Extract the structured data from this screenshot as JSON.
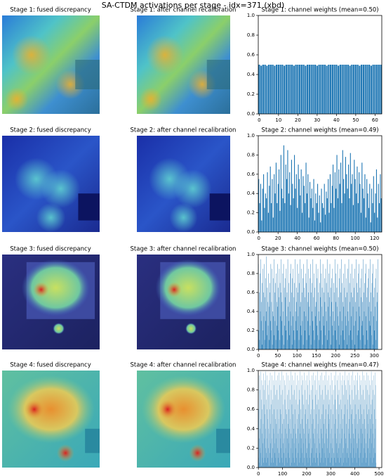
{
  "title": "SA-CTDM activations per stage - idx=371 (xbd)",
  "rows": [
    {
      "fused": "Stage 1: fused discrepancy",
      "recal": "Stage 1: after channel recalibration"
    },
    {
      "fused": "Stage 2: fused discrepancy",
      "recal": "Stage 2: after channel recalibration"
    },
    {
      "fused": "Stage 3: fused discrepancy",
      "recal": "Stage 3: after channel recalibration"
    },
    {
      "fused": "Stage 4: fused discrepancy",
      "recal": "Stage 4: after channel recalibration"
    }
  ],
  "chart_data": [
    {
      "type": "bar",
      "title": "Stage 1: channel weights (mean=0.50)",
      "color": "#1f77b4",
      "xlim": [
        -0.5,
        63.5
      ],
      "xticks": [
        0,
        10,
        20,
        30,
        40,
        50,
        60
      ],
      "ylim": [
        0,
        1
      ],
      "yticks": [
        {
          "value": 0,
          "label": "0.0"
        },
        0.2,
        0.4,
        0.6,
        0.8,
        {
          "value": 1,
          "label": "1.0"
        }
      ],
      "values": [
        0.5,
        0.49,
        0.5,
        0.5,
        0.49,
        0.5,
        0.5,
        0.5,
        0.49,
        0.5,
        0.5,
        0.5,
        0.5,
        0.49,
        0.5,
        0.5,
        0.5,
        0.5,
        0.49,
        0.5,
        0.5,
        0.5,
        0.5,
        0.5,
        0.49,
        0.5,
        0.5,
        0.5,
        0.5,
        0.5,
        0.49,
        0.5,
        0.5,
        0.5,
        0.5,
        0.49,
        0.5,
        0.5,
        0.5,
        0.5,
        0.5,
        0.49,
        0.5,
        0.5,
        0.5,
        0.5,
        0.5,
        0.49,
        0.5,
        0.5,
        0.5,
        0.5,
        0.49,
        0.5,
        0.5,
        0.5,
        0.5,
        0.5,
        0.49,
        0.5,
        0.5,
        0.5,
        0.5,
        0.5
      ]
    },
    {
      "type": "bar",
      "title": "Stage 2: channel weights (mean=0.49)",
      "color": "#1f77b4",
      "xlim": [
        -0.5,
        127.5
      ],
      "xticks": [
        0,
        20,
        40,
        60,
        80,
        100,
        120
      ],
      "ylim": [
        0,
        1
      ],
      "yticks": [
        {
          "value": 0,
          "label": "0.0"
        },
        0.2,
        0.4,
        0.6,
        0.8,
        {
          "value": 1,
          "label": "1.0"
        }
      ],
      "values": [
        0.55,
        0.3,
        0.5,
        0.12,
        0.45,
        0.6,
        0.25,
        0.4,
        0.35,
        0.62,
        0.2,
        0.48,
        0.68,
        0.3,
        0.55,
        0.15,
        0.6,
        0.4,
        0.72,
        0.3,
        0.5,
        0.65,
        0.22,
        0.8,
        0.45,
        0.35,
        0.9,
        0.3,
        0.7,
        0.55,
        0.85,
        0.4,
        0.62,
        0.28,
        0.75,
        0.5,
        0.35,
        0.8,
        0.45,
        0.6,
        0.25,
        0.7,
        0.55,
        0.38,
        0.65,
        0.2,
        0.58,
        0.48,
        0.3,
        0.72,
        0.4,
        0.6,
        0.15,
        0.52,
        0.35,
        0.45,
        0.25,
        0.55,
        0.12,
        0.4,
        0.3,
        0.5,
        0.2,
        0.38,
        0.1,
        0.45,
        0.3,
        0.25,
        0.5,
        0.18,
        0.42,
        0.35,
        0.55,
        0.2,
        0.6,
        0.3,
        0.48,
        0.7,
        0.25,
        0.62,
        0.45,
        0.8,
        0.35,
        0.65,
        0.5,
        0.72,
        0.3,
        0.85,
        0.55,
        0.4,
        0.78,
        0.6,
        0.45,
        0.7,
        0.35,
        0.82,
        0.5,
        0.6,
        0.28,
        0.75,
        0.55,
        0.4,
        0.68,
        0.3,
        0.62,
        0.5,
        0.2,
        0.72,
        0.45,
        0.35,
        0.6,
        0.15,
        0.55,
        0.4,
        0.25,
        0.5,
        0.1,
        0.45,
        0.3,
        0.58,
        0.2,
        0.4,
        0.65,
        0.15,
        0.5,
        0.3,
        0.6,
        0.35
      ]
    },
    {
      "type": "bar",
      "title": "Stage 3: channel weights (mean=0.50)",
      "color": "#1f77b4",
      "xlim": [
        -0.5,
        319.5
      ],
      "xticks": [
        0,
        50,
        100,
        150,
        200,
        250,
        300
      ],
      "ylim": [
        0,
        1
      ],
      "yticks": [
        {
          "value": 0,
          "label": "0.0"
        },
        0.2,
        0.4,
        0.6,
        0.8,
        {
          "value": 1,
          "label": "1.0"
        }
      ],
      "values": [
        0.9,
        0.2,
        0.6,
        0.1,
        0.8,
        0.4,
        0.95,
        0.3,
        0.5,
        0.05,
        0.7,
        0.85,
        0.2,
        0.6,
        0.35,
        0.9,
        0.1,
        0.55,
        0.75,
        0.3,
        0.4,
        0.98,
        0.15,
        0.65,
        0.5,
        0.25,
        0.8,
        0.45,
        0.1,
        0.7,
        0.6,
        0.3,
        0.9,
        0.2,
        0.5,
        0.85,
        0.05,
        0.4,
        0.75,
        0.35,
        0.95,
        0.15,
        0.6,
        0.3,
        0.7,
        0.1,
        0.8,
        0.5,
        0.25,
        0.9,
        0.45,
        0.65,
        0.2,
        0.55,
        0.85,
        0.1,
        0.7,
        0.35,
        0.6,
        0.95,
        0.3,
        0.5,
        0.15,
        0.8,
        0.4,
        0.9,
        0.05,
        0.65,
        0.25,
        0.75,
        0.55,
        0.2,
        0.85,
        0.35,
        0.6,
        0.1,
        0.95,
        0.45,
        0.3,
        0.7,
        0.5,
        0.15,
        0.8,
        0.4,
        0.9,
        0.25,
        0.6,
        0.05,
        0.75,
        0.35,
        0.85,
        0.2,
        0.55,
        0.7,
        0.1,
        0.95,
        0.4,
        0.3,
        0.65,
        0.5,
        0.2,
        0.9,
        0.6,
        0.35,
        0.8,
        0.1,
        0.7,
        0.45,
        0.95,
        0.25,
        0.5,
        0.85,
        0.15,
        0.6,
        0.3,
        0.75,
        0.05,
        0.9,
        0.4,
        0.65,
        0.55,
        0.2,
        0.8,
        0.35,
        0.7,
        0.1,
        0.95,
        0.5,
        0.3,
        0.6,
        0.85,
        0.15,
        0.45,
        0.75,
        0.25,
        0.9,
        0.05,
        0.6,
        0.4,
        0.7,
        0.3,
        0.95,
        0.2,
        0.55,
        0.8,
        0.1,
        0.65,
        0.45,
        0.35,
        0.9,
        0.5,
        0.25,
        0.75,
        0.15,
        0.85,
        0.6,
        0.4,
        0.1,
        0.7,
        0.3,
        0.95,
        0.55,
        0.2,
        0.8,
        0.45,
        0.65,
        0.05,
        0.9,
        0.35,
        0.6,
        0.25,
        0.75,
        0.5,
        0.15,
        0.85,
        0.4,
        0.7,
        0.3,
        0.95,
        0.1,
        0.6,
        0.45,
        0.8,
        0.2,
        0.55,
        0.9,
        0.35,
        0.65,
        0.05,
        0.75,
        0.5,
        0.25,
        0.85,
        0.4,
        0.15,
        0.7,
        0.6,
        0.3,
        0.95,
        0.2,
        0.5,
        0.8,
        0.1,
        0.65,
        0.45,
        0.9,
        0.35,
        0.55,
        0.25,
        0.75,
        0.05,
        0.85,
        0.4,
        0.6,
        0.15,
        0.95,
        0.3,
        0.7,
        0.5,
        0.2,
        0.8,
        0.45,
        0.1,
        0.65,
        0.9,
        0.35,
        0.55,
        0.25,
        0.75,
        0.6,
        0.05,
        0.85,
        0.4,
        0.3,
        0.95,
        0.15,
        0.7,
        0.5,
        0.2,
        0.8,
        0.6,
        0.35,
        0.9,
        0.1,
        0.55,
        0.45,
        0.75,
        0.25,
        0.65,
        0.85,
        0.05,
        0.5,
        0.3,
        0.95,
        0.4,
        0.7,
        0.15,
        0.6,
        0.8,
        0.2,
        0.9,
        0.45,
        0.35,
        0.65,
        0.1,
        0.75,
        0.55,
        0.25,
        0.85,
        0.5,
        0.3,
        0.95,
        0.15,
        0.6,
        0.4,
        0.7,
        0.05,
        0.8,
        0.35,
        0.9,
        0.2,
        0.55,
        0.65,
        0.1,
        0.75,
        0.45,
        0.85,
        0.3,
        0.5,
        0.95,
        0.25,
        0.6,
        0.4,
        0.15,
        0.7,
        0.8,
        0.05,
        0.9,
        0.35,
        0.55,
        0.2,
        0.65,
        0.45,
        0.75,
        0.1,
        0.85,
        0.3,
        0.5,
        0.6,
        0.95
      ]
    },
    {
      "type": "bar",
      "title": "Stage 4: channel weights (mean=0.47)",
      "color": "#1f77b4",
      "xlim": [
        -0.5,
        511.5
      ],
      "xticks": [
        0,
        100,
        200,
        300,
        400,
        500
      ],
      "ylim": [
        0,
        1
      ],
      "yticks": [
        {
          "value": 0,
          "label": "0.0"
        },
        0.2,
        0.4,
        0.6,
        0.8,
        {
          "value": 1,
          "label": "1.0"
        }
      ],
      "values": [
        0.98,
        0.1,
        0.6,
        0.3,
        0.95,
        0.05,
        0.4,
        0.8,
        0.2,
        0.99,
        0.15,
        0.5,
        0.7,
        0.02,
        0.9,
        0.35,
        0.6,
        0.1,
        0.85,
        0.25,
        0.45,
        0.97,
        0.05,
        0.65,
        0.3,
        0.8,
        0.1,
        0.55,
        0.9,
        0.2,
        0.4,
        0.99,
        0.15,
        0.7,
        0.05,
        0.6,
        0.3,
        0.95,
        0.1,
        0.5,
        0.85,
        0.2,
        0.4,
        0.75,
        0.02,
        0.9,
        0.35,
        0.6,
        0.15,
        0.98,
        0.25,
        0.45,
        0.8,
        0.05,
        0.65,
        0.3,
        0.95,
        0.1,
        0.55,
        0.7,
        0.2,
        0.9,
        0.4,
        0.05,
        0.85,
        0.35,
        0.6,
        0.15,
        0.99,
        0.25,
        0.5,
        0.75,
        0.1,
        0.9,
        0.3,
        0.45,
        0.02,
        0.8,
        0.6,
        0.2,
        0.95,
        0.35,
        0.1,
        0.7,
        0.5,
        0.98,
        0.15,
        0.4,
        0.85,
        0.05,
        0.6,
        0.3,
        0.9,
        0.2,
        0.55,
        0.75,
        0.1,
        0.99,
        0.35,
        0.45,
        0.05,
        0.8,
        0.25,
        0.65,
        0.95,
        0.15,
        0.5,
        0.3,
        0.9,
        0.02,
        0.7,
        0.4,
        0.85,
        0.2,
        0.6,
        0.1,
        0.98,
        0.35,
        0.55,
        0.05,
        0.75,
        0.3,
        0.95,
        0.15,
        0.45,
        0.8,
        0.25,
        0.6,
        0.1,
        0.9,
        0.4,
        0.02,
        0.7,
        0.5,
        0.99,
        0.2,
        0.35,
        0.85,
        0.05,
        0.65,
        0.3,
        0.95,
        0.15,
        0.55,
        0.75,
        0.1,
        0.9,
        0.4,
        0.25,
        0.8,
        0.05,
        0.6,
        0.45,
        0.98,
        0.2,
        0.35,
        0.7,
        0.1,
        0.85,
        0.3,
        0.5,
        0.95,
        0.02,
        0.65,
        0.4,
        0.15,
        0.9,
        0.25,
        0.55,
        0.8,
        0.05,
        0.7,
        0.35,
        0.99,
        0.1,
        0.45,
        0.6,
        0.2,
        0.85,
        0.3,
        0.95,
        0.15,
        0.5,
        0.75,
        0.05,
        0.9,
        0.4,
        0.25,
        0.65,
        0.1,
        0.98,
        0.35,
        0.55,
        0.8,
        0.02,
        0.6,
        0.3,
        0.9,
        0.15,
        0.45,
        0.7,
        0.2,
        0.95,
        0.1,
        0.5,
        0.85,
        0.05,
        0.65,
        0.35,
        0.99,
        0.25,
        0.4,
        0.75,
        0.1,
        0.9,
        0.3,
        0.55,
        0.02,
        0.8,
        0.6,
        0.15,
        0.95,
        0.45,
        0.2,
        0.7,
        0.05,
        0.85,
        0.35,
        0.5,
        0.98,
        0.1,
        0.6,
        0.3,
        0.9,
        0.25,
        0.4,
        0.75,
        0.05,
        0.95,
        0.15,
        0.55,
        0.8,
        0.2,
        0.65,
        0.35,
        0.99,
        0.1,
        0.45,
        0.7,
        0.02,
        0.9,
        0.3,
        0.6,
        0.15,
        0.85,
        0.25,
        0.5,
        0.95,
        0.05,
        0.75,
        0.4,
        0.1,
        0.98,
        0.35,
        0.55,
        0.2,
        0.8,
        0.3,
        0.65,
        0.9,
        0.05,
        0.45,
        0.7,
        0.15,
        0.95,
        0.25,
        0.5,
        0.85,
        0.1,
        0.6,
        0.35,
        0.99,
        0.02,
        0.75,
        0.4,
        0.2,
        0.9,
        0.3,
        0.55,
        0.8,
        0.1,
        0.65,
        0.45,
        0.95,
        0.15,
        0.5,
        0.7,
        0.05,
        0.85,
        0.35,
        0.6,
        0.25,
        0.98,
        0.1,
        0.4,
        0.75,
        0.2,
        0.9,
        0.3,
        0.55,
        0.02,
        0.8,
        0.65,
        0.15,
        0.95,
        0.45,
        0.1,
        0.7,
        0.35,
        0.85,
        0.05,
        0.5,
        0.99,
        0.25,
        0.6,
        0.3,
        0.9,
        0.15,
        0.4,
        0.75,
        0.1,
        0.95,
        0.2,
        0.55,
        0.8,
        0.05,
        0.65,
        0.35,
        0.98,
        0.25,
        0.45,
        0.7,
        0.1,
        0.9,
        0.3,
        0.6,
        0.02,
        0.85,
        0.4,
        0.15,
        0.95,
        0.5,
        0.2,
        0.75,
        0.05,
        0.9,
        0.35,
        0.55,
        0.99,
        0.1,
        0.65,
        0.3,
        0.85,
        0.25,
        0.45,
        0.8,
        0.05,
        0.95,
        0.15,
        0.6,
        0.7,
        0.2,
        0.9,
        0.4,
        0.1,
        0.98,
        0.35,
        0.5,
        0.75,
        0.02,
        0.85,
        0.3,
        0.65,
        0.15,
        0.95,
        0.25,
        0.55,
        0.8,
        0.1,
        0.6,
        0.45,
        0.99,
        0.05,
        0.7,
        0.35,
        0.2,
        0.9,
        0.3,
        0.5,
        0.85,
        0.1,
        0.65,
        0.4,
        0.95,
        0.15,
        0.55,
        0.75,
        0.05,
        0.9,
        0.25,
        0.45,
        0.98,
        0.2,
        0.6,
        0.35,
        0.8,
        0.1,
        0.7,
        0.3,
        0.95,
        0.02,
        0.5,
        0.85,
        0.15,
        0.65,
        0.4,
        0.9,
        0.25,
        0.55,
        0.75,
        0.05,
        0.99,
        0.35,
        0.45,
        0.1,
        0.8,
        0.6,
        0.2,
        0.95,
        0.3,
        0.5,
        0.7,
        0.15,
        0.9,
        0.4,
        0.05,
        0.85,
        0.25,
        0.65,
        0.98,
        0.1,
        0.55,
        0.35,
        0.8,
        0.2,
        0.95,
        0.45,
        0.6,
        0.02,
        0.75,
        0.3,
        0.9,
        0.15,
        0.5,
        0.85,
        0.1,
        0.65,
        0.4,
        0.99,
        0.25,
        0.55,
        0.7,
        0.05,
        0.9,
        0.35,
        0.45,
        0.8,
        0.2,
        0.95,
        0.1,
        0.6,
        0.3,
        0.75,
        0.15,
        0.98,
        0.4,
        0.5,
        0.85,
        0.05
      ]
    }
  ]
}
